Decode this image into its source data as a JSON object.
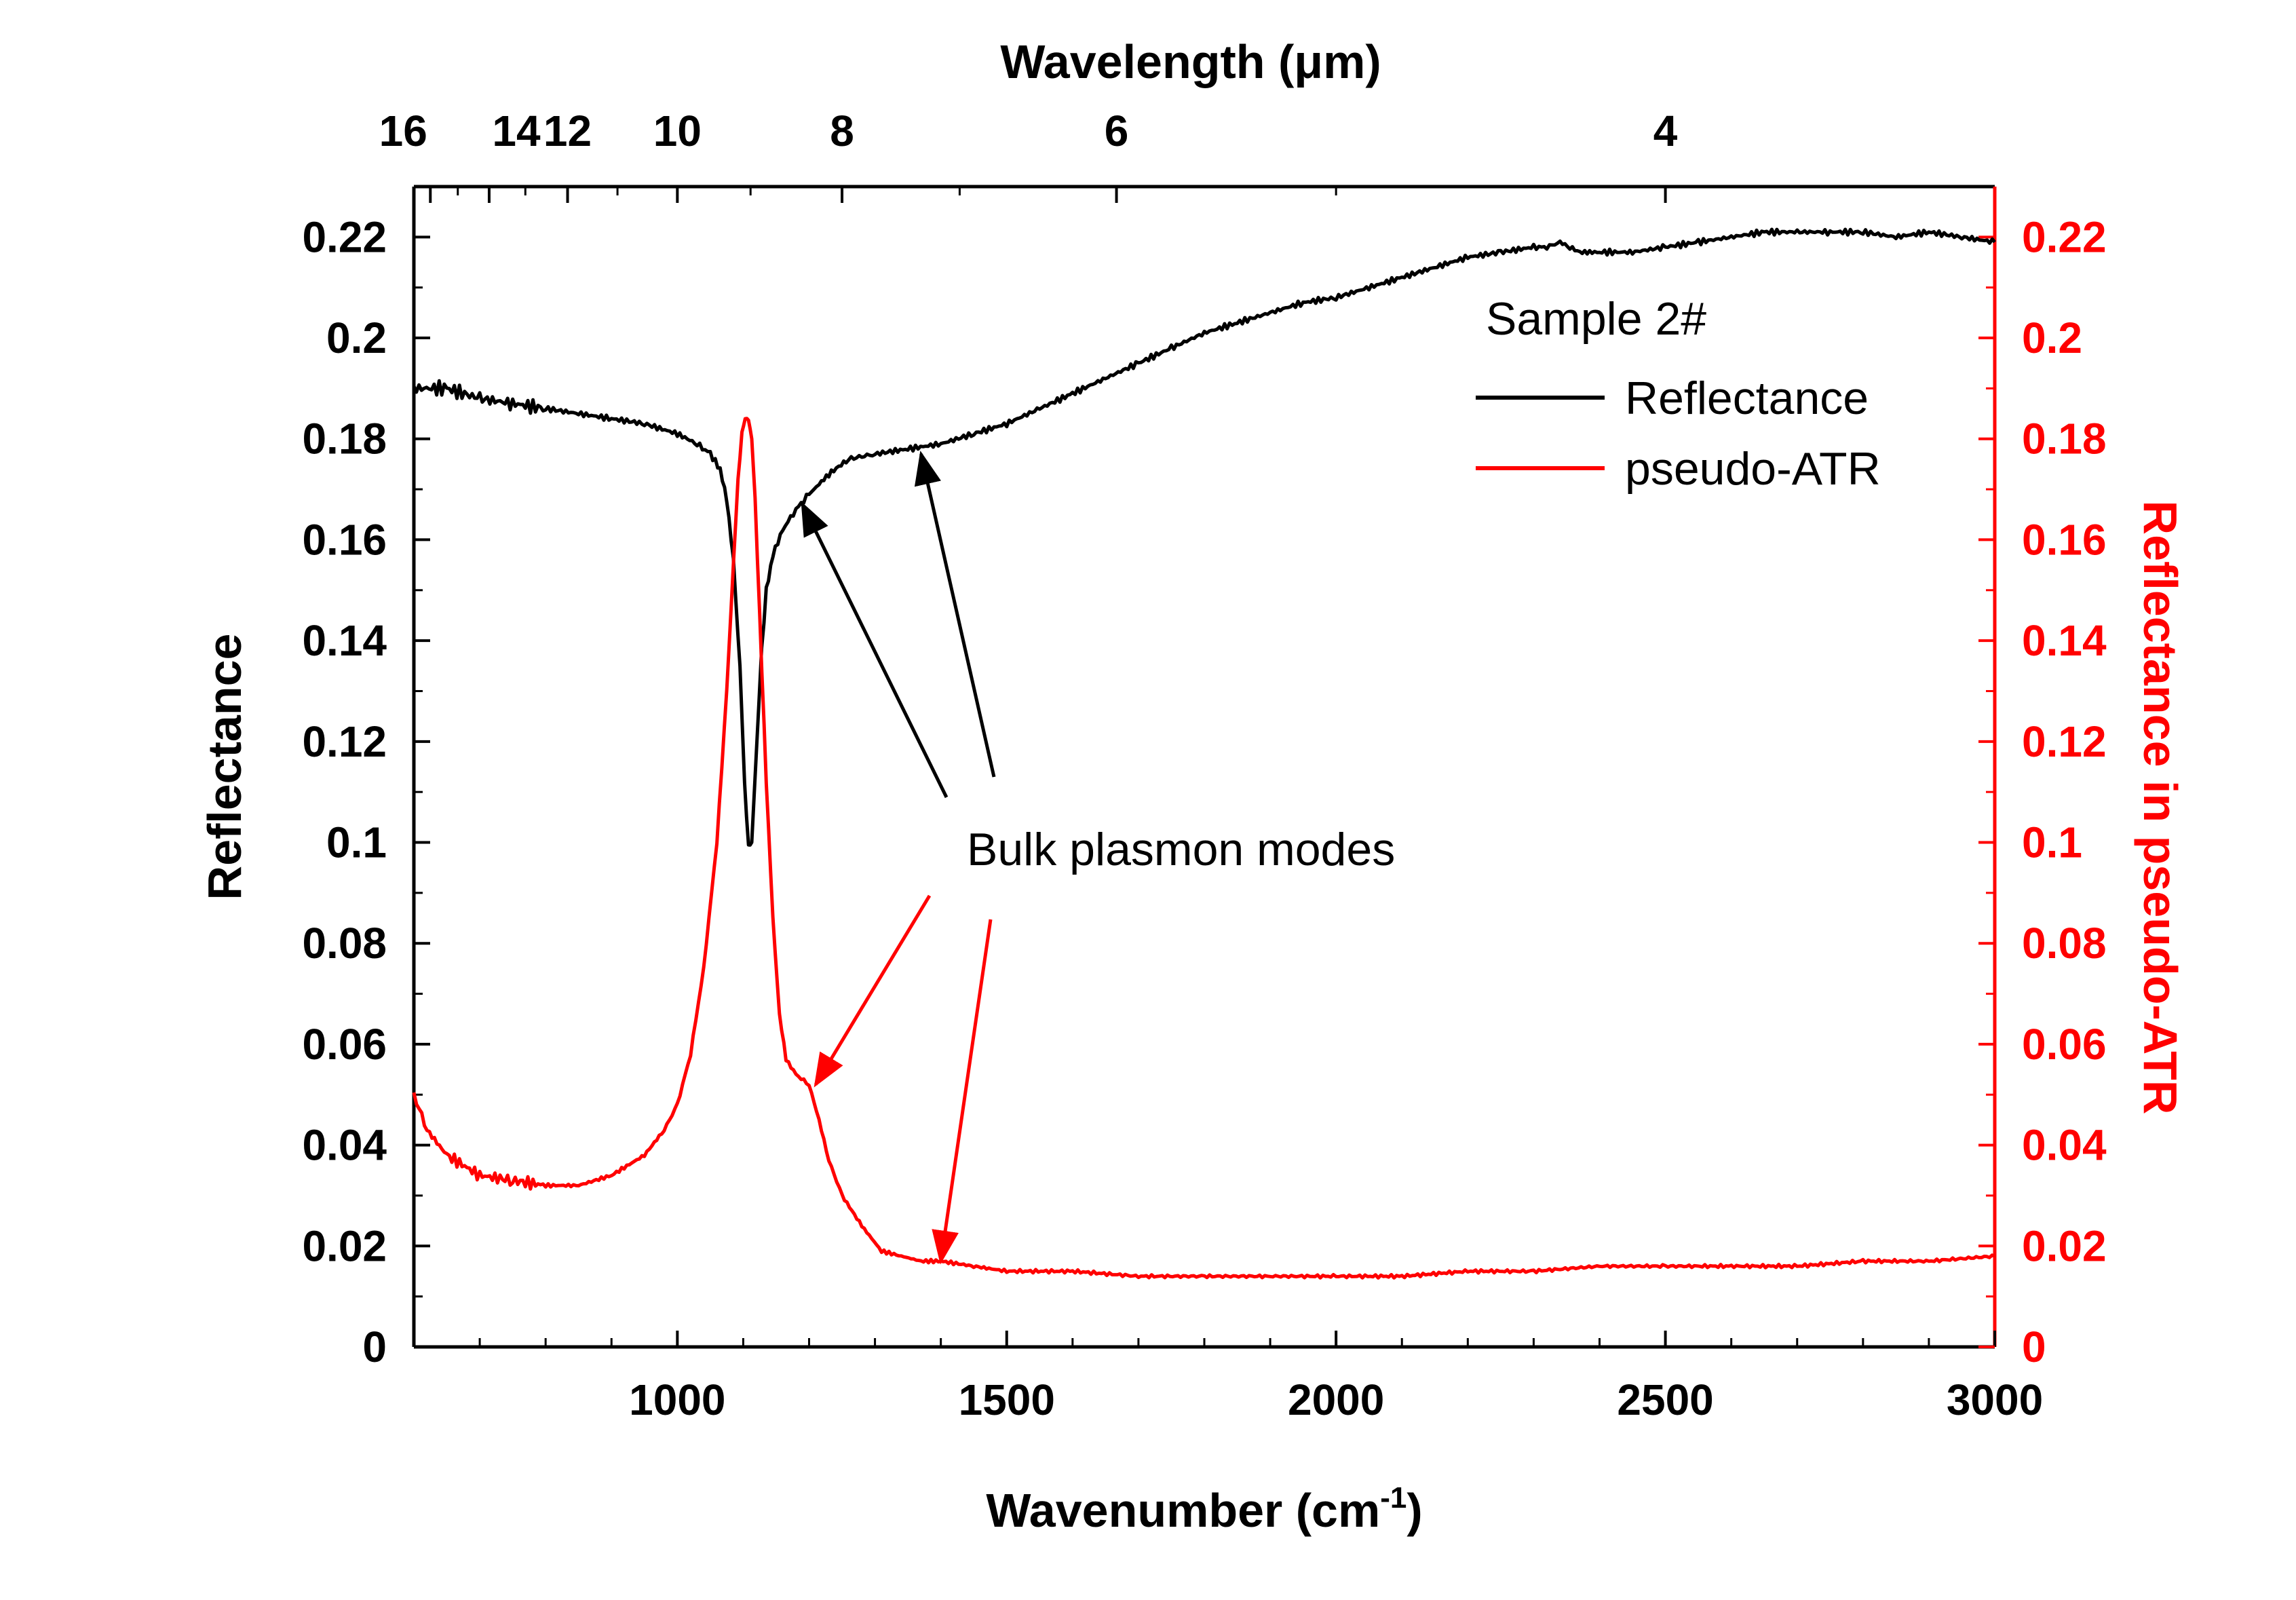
{
  "colors": {
    "primary": "#000000",
    "secondary": "#ff0000",
    "background": "#ffffff"
  },
  "chart_data": {
    "type": "line",
    "title": "",
    "xlabel": "Wavenumber (cm",
    "xlabel_superscript": "-1",
    "xlabel_suffix": ")",
    "ylabel": "Reflectance",
    "y2label": "Reflectance in pseudo-ATR",
    "x2label": "Wavelength (μm)",
    "xlim": [
      600,
      3000
    ],
    "ylim": [
      0,
      0.23
    ],
    "y2lim": [
      0,
      0.23
    ],
    "x_ticks": [
      1000,
      1500,
      2000,
      2500,
      3000
    ],
    "x_tick_labels": [
      "1000",
      "1500",
      "2000",
      "2500",
      "3000"
    ],
    "y_ticks": [
      0,
      0.02,
      0.04,
      0.06,
      0.08,
      0.1,
      0.12,
      0.14,
      0.16,
      0.18,
      0.2,
      0.22
    ],
    "y_tick_labels": [
      "0",
      "0.02",
      "0.04",
      "0.06",
      "0.08",
      "0.1",
      "0.12",
      "0.14",
      "0.16",
      "0.18",
      "0.2",
      "0.22"
    ],
    "y2_tick_labels": [
      "0",
      "0.02",
      "0.04",
      "0.06",
      "0.08",
      "0.1",
      "0.12",
      "0.14",
      "0.16",
      "0.18",
      "0.2",
      "0.22"
    ],
    "x2_ticks_um": [
      16,
      14,
      12,
      10,
      8,
      6,
      4
    ],
    "x2_tick_labels": [
      "16",
      "14",
      "12",
      "10",
      "8",
      "6",
      "4"
    ],
    "legend": {
      "title": "Sample 2#",
      "position": "top-right",
      "entries": [
        "Reflectance",
        "pseudo-ATR"
      ]
    },
    "annotation": {
      "text": "Bulk plasmon modes",
      "arrows": [
        {
          "series": "Reflectance",
          "x": 1190,
          "y": 0.167
        },
        {
          "series": "Reflectance",
          "x": 1370,
          "y": 0.177
        },
        {
          "series": "pseudo-ATR",
          "x": 1210,
          "y": 0.052
        },
        {
          "series": "pseudo-ATR",
          "x": 1400,
          "y": 0.017
        }
      ]
    },
    "series": [
      {
        "name": "Reflectance",
        "axis": "left",
        "color": "#000000",
        "x": [
          600,
          650,
          700,
          750,
          800,
          850,
          900,
          950,
          1000,
          1030,
          1050,
          1065,
          1075,
          1085,
          1095,
          1102,
          1108,
          1113,
          1120,
          1128,
          1135,
          1145,
          1160,
          1180,
          1200,
          1230,
          1260,
          1300,
          1350,
          1400,
          1450,
          1500,
          1550,
          1600,
          1650,
          1700,
          1750,
          1800,
          1850,
          1900,
          1950,
          2000,
          2050,
          2100,
          2150,
          2200,
          2250,
          2300,
          2320,
          2340,
          2355,
          2370,
          2400,
          2450,
          2500,
          2550,
          2600,
          2650,
          2700,
          2750,
          2800,
          2850,
          2900,
          2950,
          3000
        ],
        "y": [
          0.19,
          0.19,
          0.188,
          0.187,
          0.186,
          0.185,
          0.184,
          0.183,
          0.181,
          0.179,
          0.177,
          0.174,
          0.168,
          0.156,
          0.135,
          0.112,
          0.099,
          0.1,
          0.118,
          0.138,
          0.15,
          0.157,
          0.162,
          0.166,
          0.169,
          0.173,
          0.176,
          0.177,
          0.178,
          0.179,
          0.181,
          0.183,
          0.186,
          0.189,
          0.192,
          0.195,
          0.198,
          0.201,
          0.203,
          0.205,
          0.207,
          0.208,
          0.21,
          0.212,
          0.214,
          0.216,
          0.217,
          0.218,
          0.218,
          0.219,
          0.218,
          0.217,
          0.217,
          0.217,
          0.218,
          0.219,
          0.22,
          0.221,
          0.221,
          0.221,
          0.221,
          0.22,
          0.221,
          0.22,
          0.219
        ]
      },
      {
        "name": "pseudo-ATR",
        "axis": "right",
        "color": "#ff0000",
        "x": [
          600,
          620,
          650,
          700,
          750,
          800,
          850,
          900,
          950,
          980,
          1000,
          1020,
          1040,
          1060,
          1075,
          1085,
          1092,
          1098,
          1103,
          1108,
          1113,
          1118,
          1125,
          1135,
          1145,
          1155,
          1165,
          1180,
          1200,
          1215,
          1230,
          1250,
          1280,
          1310,
          1340,
          1370,
          1400,
          1450,
          1500,
          1600,
          1700,
          1800,
          1900,
          2000,
          2100,
          2200,
          2300,
          2400,
          2500,
          2600,
          2700,
          2800,
          2900,
          3000
        ],
        "y": [
          0.05,
          0.043,
          0.038,
          0.034,
          0.033,
          0.032,
          0.032,
          0.034,
          0.038,
          0.043,
          0.048,
          0.058,
          0.075,
          0.1,
          0.13,
          0.155,
          0.172,
          0.181,
          0.184,
          0.184,
          0.18,
          0.168,
          0.145,
          0.112,
          0.085,
          0.066,
          0.057,
          0.054,
          0.052,
          0.045,
          0.037,
          0.03,
          0.024,
          0.019,
          0.018,
          0.017,
          0.017,
          0.016,
          0.015,
          0.015,
          0.014,
          0.014,
          0.014,
          0.014,
          0.014,
          0.015,
          0.015,
          0.016,
          0.016,
          0.016,
          0.016,
          0.017,
          0.017,
          0.018
        ]
      }
    ]
  }
}
